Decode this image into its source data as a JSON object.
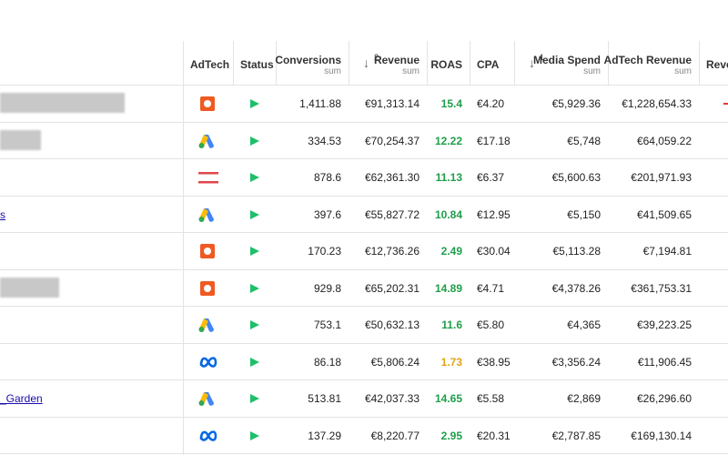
{
  "table": {
    "columns": [
      {
        "label": "AdTech"
      },
      {
        "label": "Status"
      },
      {
        "label": "Conversions",
        "sub": "sum"
      },
      {
        "label": "Revenue",
        "sub": "sum",
        "sort": "2"
      },
      {
        "label": "ROAS"
      },
      {
        "label": "CPA"
      },
      {
        "label": "Media Spend",
        "sub": "sum",
        "sort": "1"
      },
      {
        "label": "AdTech Revenue",
        "sub": "sum"
      },
      {
        "label": "Reve"
      }
    ],
    "rows": [
      {
        "cells": [
          "1,411.88",
          "€91,313.14",
          "15.4",
          "€4.20",
          "€5,929.36",
          "€1,228,654.33"
        ]
      },
      {
        "cells": [
          "334.53",
          "€70,254.37",
          "12.22",
          "€17.18",
          "€5,748",
          "€64,059.22"
        ]
      },
      {
        "cells": [
          "878.6",
          "€62,361.30",
          "11.13",
          "€6.37",
          "€5,600.63",
          "€201,971.93"
        ]
      },
      {
        "name": "s",
        "cells": [
          "397.6",
          "€55,827.72",
          "10.84",
          "€12.95",
          "€5,150",
          "€41,509.65"
        ]
      },
      {
        "cells": [
          "170.23",
          "€12,736.26",
          "2.49",
          "€30.04",
          "€5,113.28",
          "€7,194.81"
        ]
      },
      {
        "cells": [
          "929.8",
          "€65,202.31",
          "14.89",
          "€4.71",
          "€4,378.26",
          "€361,753.31"
        ]
      },
      {
        "cells": [
          "753.1",
          "€50,632.13",
          "11.6",
          "€5.80",
          "€4,365",
          "€39,223.25"
        ]
      },
      {
        "cells": [
          "86.18",
          "€5,806.24",
          "1.73",
          "€38.95",
          "€3,356.24",
          "€11,906.45"
        ]
      },
      {
        "name": "_Garden",
        "cells": [
          "513.81",
          "€42,037.33",
          "14.65",
          "€5.58",
          "€2,869",
          "€26,296.60"
        ]
      },
      {
        "cells": [
          "137.29",
          "€8,220.77",
          "2.95",
          "€20.31",
          "€2,787.85",
          "€169,130.14"
        ]
      }
    ]
  }
}
